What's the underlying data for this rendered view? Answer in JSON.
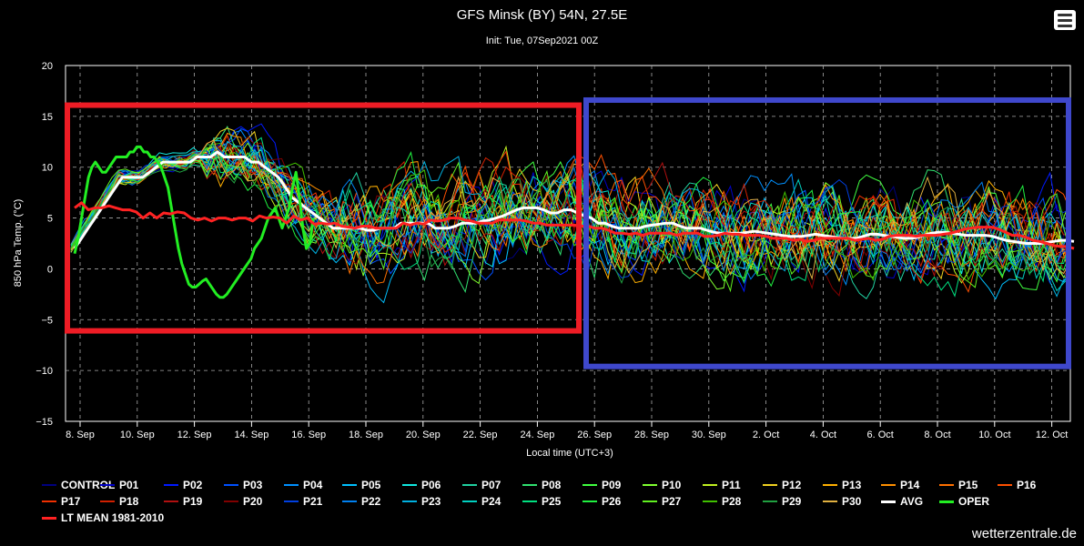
{
  "header": {
    "title": "GFS Minsk (BY) 54N, 27.5E",
    "subtitle": "Init: Tue, 07Sep2021 00Z",
    "menu_icon": "hamburger-menu-icon"
  },
  "credit": "wetterzentrale.de",
  "colors": {
    "background": "#000000",
    "avg": "#ffffff",
    "oper": "#22ee22",
    "lt_mean": "#ff2222",
    "highlight_red": "#ee1c25",
    "highlight_blue": "#3f48cc"
  },
  "annotations": [
    {
      "name": "red-highlight-box",
      "color": "#ee1c25",
      "x_from": "7. Sep 21h",
      "x_to": "25. Sep 12h",
      "y_from": -6.1,
      "y_to": 16.1
    },
    {
      "name": "blue-highlight-box",
      "color": "#3f48cc",
      "x_from": "25. Sep 15h",
      "x_to": "12. Oct 12h",
      "y_from": -9.6,
      "y_to": 16.6
    }
  ],
  "chart_data": {
    "type": "line",
    "title": "GFS Minsk (BY) 54N, 27.5E",
    "subtitle": "Init: Tue, 07Sep2021 00Z",
    "xlabel": "Local time (UTC+3)",
    "ylabel": "850 hPa Temp. (°C)",
    "ylim": [
      -15,
      20
    ],
    "yticks": [
      "20",
      "15",
      "10",
      "5",
      "0",
      "−5",
      "−10",
      "−15"
    ],
    "xticks": [
      "8. Sep",
      "10. Sep",
      "12. Sep",
      "14. Sep",
      "16. Sep",
      "18. Sep",
      "20. Sep",
      "22. Sep",
      "24. Sep",
      "26. Sep",
      "28. Sep",
      "30. Sep",
      "2. Oct",
      "4. Oct",
      "6. Oct",
      "8. Oct",
      "10. Oct",
      "12. Oct"
    ],
    "grid": true,
    "legend_position": "bottom",
    "x_range": [
      "7. Sep 03h",
      "12. Oct 15h"
    ],
    "x_step": "6h",
    "series": [
      {
        "name": "AVG",
        "color": "#ffffff",
        "width": 3,
        "values": [
          2,
          3,
          4,
          5,
          6,
          7,
          8,
          9,
          9,
          9,
          9,
          9.5,
          10,
          10.5,
          10.5,
          10.5,
          10.5,
          10.5,
          11,
          11,
          11,
          11.5,
          11,
          11,
          11,
          11,
          10.5,
          10.5,
          10,
          9.5,
          9,
          8,
          7,
          6.5,
          6,
          5.5,
          5,
          4.5,
          4,
          4,
          4,
          4,
          4,
          3.8,
          3.8,
          4,
          4,
          4,
          4.5,
          4.5,
          4.5,
          4.5,
          4.5,
          4,
          4,
          4,
          4.2,
          4.5,
          4.5,
          4.5,
          4.7,
          4.8,
          5,
          5.2,
          5.5,
          5.8,
          6,
          6,
          6,
          5.8,
          5.5,
          5.5,
          5.8,
          5.8,
          5.5,
          5.2,
          5,
          4.5,
          4.5,
          4.2,
          4,
          4,
          4,
          4,
          4.2,
          4.3,
          4.4,
          4.5,
          4.5,
          4.2,
          4,
          4,
          4,
          3.8,
          3.6,
          3.5,
          3.5,
          3.5,
          3.5,
          3.6,
          3.7,
          3.6,
          3.5,
          3.4,
          3.3,
          3.2,
          3.2,
          3.2,
          3.3,
          3.4,
          3.3,
          3.2,
          3.1,
          3,
          3,
          3,
          3.2,
          3.4,
          3.4,
          3.3,
          3.2,
          3.1,
          3,
          3,
          3.1,
          3.3,
          3.5,
          3.6,
          3.6,
          3.5,
          3.4,
          3.3,
          3.3,
          3.3,
          3.3,
          3.2,
          3,
          2.8,
          2.7,
          2.6,
          2.5,
          2.5,
          2.5,
          2.6,
          2.7,
          2.8,
          2.8,
          2.7
        ]
      },
      {
        "name": "OPER",
        "color": "#22ee22",
        "width": 3,
        "values": [
          1.5,
          3,
          5,
          7,
          9,
          10,
          10.5,
          10,
          9.5,
          9.5,
          10,
          10.5,
          11,
          11,
          11,
          11,
          11.5,
          11.5,
          12,
          12,
          11.5,
          11.5,
          11,
          11,
          10.5,
          10,
          9,
          8,
          6,
          4,
          2,
          0.5,
          -0.5,
          -1.5,
          -1.8,
          -1.8,
          -1.5,
          -1.2,
          -1,
          -1.5,
          -2,
          -2.5,
          -2.8,
          -2.8,
          -2.5,
          -2,
          -1.5,
          -1,
          -0.5,
          0,
          0.5,
          1,
          2,
          2.5,
          3,
          4,
          5,
          5.5,
          6,
          5,
          4,
          5,
          6,
          8,
          9.5,
          7,
          4,
          2,
          2.5,
          5
        ]
      },
      {
        "name": "LT MEAN 1981-2010",
        "color": "#ff2222",
        "width": 3,
        "values": [
          6,
          6.5,
          5.8,
          6,
          6,
          6.2,
          6,
          5.8,
          5.8,
          5.6,
          5,
          5.5,
          5,
          5.5,
          5.4,
          5.6,
          5.5,
          5,
          4.8,
          5,
          4.7,
          5,
          5,
          4.8,
          5,
          5,
          4.7,
          5.2,
          5,
          5.1,
          5,
          4.5,
          5.2,
          4.8,
          5,
          4.4,
          4.5,
          4.4,
          4.5,
          4.2,
          4.1,
          4,
          4.2,
          4.2,
          4,
          4,
          4,
          4,
          4.5,
          4.3,
          4.5,
          4.4,
          4.8,
          4.7,
          4.8,
          5,
          5,
          4.8,
          4.7,
          4.5,
          4.5,
          4.5,
          4.8,
          4.8,
          4.8,
          4.8,
          4.7,
          4.5,
          4.5,
          4.3,
          4.3,
          4.3,
          4.3,
          4.3,
          4.2,
          4.2,
          4,
          4,
          3.8,
          3.5,
          3.5,
          3.4,
          3.5,
          3.3,
          3.5,
          3.5,
          3.5,
          3.5,
          3.3,
          3.5,
          3.5,
          3.5,
          3.2,
          3.2,
          3.3,
          3.5,
          3.4,
          3.4,
          3.3,
          3.3,
          3.3,
          3.2,
          3,
          3,
          3,
          2.8,
          2.9,
          2.7,
          2.8,
          3,
          3,
          3,
          3,
          3,
          2.8,
          2.9,
          3,
          2.8,
          2.9,
          3.2,
          3.3,
          3.3,
          3.3,
          3.2,
          3.3,
          3.3,
          3.3,
          3.4,
          3.5,
          3.7,
          3.9,
          4,
          4.1,
          4.1,
          4.1,
          3.9,
          3.6,
          3.3,
          3.3,
          3.1,
          2.8,
          2.7,
          2.5,
          2.3,
          2.2,
          2.2,
          2
        ]
      }
    ],
    "members": [
      {
        "name": "CONTROL",
        "color": "#00007f"
      },
      {
        "name": "P01",
        "color": "#0000c8"
      },
      {
        "name": "P02",
        "color": "#0019ff"
      },
      {
        "name": "P03",
        "color": "#0050ff"
      },
      {
        "name": "P04",
        "color": "#0090ff"
      },
      {
        "name": "P05",
        "color": "#00c0ff"
      },
      {
        "name": "P06",
        "color": "#10e8e0"
      },
      {
        "name": "P07",
        "color": "#20d0a0"
      },
      {
        "name": "P08",
        "color": "#30e070"
      },
      {
        "name": "P09",
        "color": "#40ff40"
      },
      {
        "name": "P10",
        "color": "#80ff30"
      },
      {
        "name": "P11",
        "color": "#c0f020"
      },
      {
        "name": "P12",
        "color": "#f0d020"
      },
      {
        "name": "P13",
        "color": "#ffb000"
      },
      {
        "name": "P14",
        "color": "#ff9000"
      },
      {
        "name": "P15",
        "color": "#ff7000"
      },
      {
        "name": "P16",
        "color": "#ff5000"
      },
      {
        "name": "P17",
        "color": "#f03000"
      },
      {
        "name": "P18",
        "color": "#d02000"
      },
      {
        "name": "P19",
        "color": "#b01010"
      },
      {
        "name": "P20",
        "color": "#800000"
      },
      {
        "name": "P21",
        "color": "#0040e0"
      },
      {
        "name": "P22",
        "color": "#0080f0"
      },
      {
        "name": "P23",
        "color": "#00b0e0"
      },
      {
        "name": "P24",
        "color": "#00d0c0"
      },
      {
        "name": "P25",
        "color": "#00e080"
      },
      {
        "name": "P26",
        "color": "#20f040"
      },
      {
        "name": "P27",
        "color": "#60f020"
      },
      {
        "name": "P28",
        "color": "#40c000"
      },
      {
        "name": "P29",
        "color": "#20a040"
      },
      {
        "name": "P30",
        "color": "#e0b040"
      }
    ]
  },
  "legend": [
    {
      "label": "CONTROL",
      "color": "#00007f",
      "width": 2
    },
    {
      "label": "P01",
      "color": "#0000c8",
      "width": 2
    },
    {
      "label": "P02",
      "color": "#0019ff",
      "width": 2
    },
    {
      "label": "P03",
      "color": "#0050ff",
      "width": 2
    },
    {
      "label": "P04",
      "color": "#0090ff",
      "width": 2
    },
    {
      "label": "P05",
      "color": "#00c0ff",
      "width": 2
    },
    {
      "label": "P06",
      "color": "#10e8e0",
      "width": 2
    },
    {
      "label": "P07",
      "color": "#20d0a0",
      "width": 2
    },
    {
      "label": "P08",
      "color": "#30e070",
      "width": 2
    },
    {
      "label": "P09",
      "color": "#40ff40",
      "width": 2
    },
    {
      "label": "P10",
      "color": "#80ff30",
      "width": 2
    },
    {
      "label": "P11",
      "color": "#c0f020",
      "width": 2
    },
    {
      "label": "P12",
      "color": "#f0d020",
      "width": 2
    },
    {
      "label": "P13",
      "color": "#ffb000",
      "width": 2
    },
    {
      "label": "P14",
      "color": "#ff9000",
      "width": 2
    },
    {
      "label": "P15",
      "color": "#ff7000",
      "width": 2
    },
    {
      "label": "P16",
      "color": "#ff5000",
      "width": 2
    },
    {
      "label": "P17",
      "color": "#f03000",
      "width": 2
    },
    {
      "label": "P18",
      "color": "#d02000",
      "width": 2
    },
    {
      "label": "P19",
      "color": "#b01010",
      "width": 2
    },
    {
      "label": "P20",
      "color": "#800000",
      "width": 2
    },
    {
      "label": "P21",
      "color": "#0040e0",
      "width": 2
    },
    {
      "label": "P22",
      "color": "#0080f0",
      "width": 2
    },
    {
      "label": "P23",
      "color": "#00b0e0",
      "width": 2
    },
    {
      "label": "P24",
      "color": "#00d0c0",
      "width": 2
    },
    {
      "label": "P25",
      "color": "#00e080",
      "width": 2
    },
    {
      "label": "P26",
      "color": "#20f040",
      "width": 2
    },
    {
      "label": "P27",
      "color": "#60f020",
      "width": 2
    },
    {
      "label": "P28",
      "color": "#40c000",
      "width": 2
    },
    {
      "label": "P29",
      "color": "#20a040",
      "width": 2
    },
    {
      "label": "P30",
      "color": "#e0b040",
      "width": 2
    },
    {
      "label": "AVG",
      "color": "#ffffff",
      "width": 3
    },
    {
      "label": "OPER",
      "color": "#22ee22",
      "width": 3
    },
    {
      "label": "LT MEAN 1981-2010",
      "color": "#ff2222",
      "width": 3
    }
  ]
}
